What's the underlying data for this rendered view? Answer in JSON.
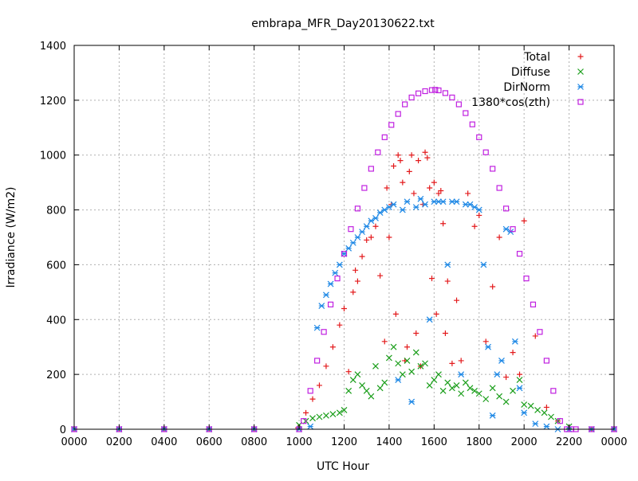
{
  "chart_data": {
    "type": "scatter",
    "title": "embrapa_MFR_Day20130622.txt",
    "xlabel": "UTC Hour",
    "ylabel": "Irradiance (W/m2)",
    "xlim": [
      0,
      24
    ],
    "ylim": [
      0,
      1400
    ],
    "grid": true,
    "legend_position": "top-right",
    "x_tick_labels": [
      "0000",
      "0200",
      "0400",
      "0600",
      "0800",
      "1000",
      "1200",
      "1400",
      "1600",
      "1800",
      "2000",
      "2200",
      "0000"
    ],
    "y_ticks": [
      0,
      200,
      400,
      600,
      800,
      1000,
      1200,
      1400
    ],
    "series": [
      {
        "name": "Total",
        "marker": "+",
        "color": "#e31a1c",
        "x": [
          0,
          2,
          4,
          6,
          8,
          9.95,
          10.3,
          10.6,
          10.9,
          11.2,
          11.5,
          11.8,
          12.0,
          12.2,
          12.4,
          12.5,
          12.6,
          12.8,
          13.0,
          13.2,
          13.4,
          13.6,
          13.8,
          13.9,
          14.0,
          14.1,
          14.2,
          14.3,
          14.4,
          14.5,
          14.6,
          14.7,
          14.8,
          14.9,
          15.0,
          15.1,
          15.2,
          15.3,
          15.4,
          15.5,
          15.6,
          15.7,
          15.8,
          15.9,
          16.0,
          16.1,
          16.2,
          16.3,
          16.4,
          16.5,
          16.6,
          16.8,
          17.0,
          17.2,
          17.5,
          17.8,
          18.0,
          18.3,
          18.6,
          18.9,
          19.2,
          19.5,
          19.8,
          20.0,
          20.5,
          21.0,
          21.5,
          22.0,
          23.0,
          24.0
        ],
        "y": [
          0,
          0,
          0,
          0,
          0,
          5,
          60,
          110,
          160,
          230,
          300,
          380,
          440,
          210,
          500,
          580,
          540,
          630,
          690,
          700,
          740,
          560,
          320,
          880,
          700,
          820,
          960,
          420,
          1000,
          980,
          900,
          250,
          300,
          940,
          1000,
          860,
          350,
          980,
          230,
          820,
          1010,
          990,
          880,
          550,
          900,
          420,
          860,
          870,
          750,
          350,
          540,
          240,
          470,
          250,
          860,
          740,
          780,
          320,
          520,
          700,
          190,
          280,
          200,
          760,
          340,
          80,
          30,
          0,
          0,
          0
        ]
      },
      {
        "name": "Diffuse",
        "marker": "×",
        "color": "#1a9e1a",
        "x": [
          0,
          2,
          4,
          6,
          8,
          10.0,
          10.3,
          10.6,
          10.9,
          11.2,
          11.5,
          11.8,
          12.0,
          12.2,
          12.4,
          12.6,
          12.8,
          13.0,
          13.2,
          13.4,
          13.6,
          13.8,
          14.0,
          14.2,
          14.4,
          14.6,
          14.8,
          15.0,
          15.2,
          15.4,
          15.6,
          15.8,
          16.0,
          16.2,
          16.4,
          16.6,
          16.8,
          17.0,
          17.2,
          17.4,
          17.6,
          17.8,
          18.0,
          18.3,
          18.6,
          18.9,
          19.2,
          19.5,
          19.8,
          20.0,
          20.3,
          20.6,
          20.9,
          21.2,
          21.5,
          22.0,
          23.0,
          24.0
        ],
        "y": [
          0,
          0,
          0,
          0,
          0,
          15,
          30,
          40,
          45,
          50,
          55,
          60,
          70,
          140,
          180,
          200,
          160,
          140,
          120,
          230,
          150,
          170,
          260,
          300,
          240,
          200,
          250,
          210,
          280,
          230,
          240,
          160,
          180,
          200,
          140,
          170,
          150,
          160,
          130,
          170,
          150,
          140,
          130,
          110,
          150,
          120,
          100,
          140,
          180,
          90,
          85,
          70,
          60,
          45,
          30,
          10,
          0,
          0
        ]
      },
      {
        "name": "DirNorm",
        "marker": "*",
        "color": "#1e88e5",
        "x": [
          0,
          2,
          4,
          6,
          8,
          10.0,
          10.5,
          10.8,
          11.0,
          11.2,
          11.4,
          11.6,
          11.8,
          12.0,
          12.2,
          12.4,
          12.6,
          12.8,
          13.0,
          13.2,
          13.4,
          13.6,
          13.8,
          14.0,
          14.2,
          14.4,
          14.6,
          14.8,
          15.0,
          15.2,
          15.4,
          15.6,
          15.8,
          16.0,
          16.2,
          16.4,
          16.6,
          16.8,
          17.0,
          17.2,
          17.4,
          17.6,
          17.8,
          18.0,
          18.2,
          18.4,
          18.6,
          18.8,
          19.0,
          19.2,
          19.4,
          19.6,
          19.8,
          20.0,
          20.5,
          21.0,
          21.5,
          22.0,
          23.0,
          24.0
        ],
        "y": [
          0,
          0,
          0,
          0,
          0,
          0,
          10,
          370,
          450,
          490,
          530,
          570,
          600,
          640,
          660,
          680,
          700,
          720,
          740,
          760,
          770,
          790,
          800,
          810,
          820,
          180,
          800,
          830,
          100,
          810,
          840,
          820,
          400,
          830,
          830,
          830,
          600,
          830,
          830,
          200,
          820,
          820,
          810,
          800,
          600,
          300,
          50,
          200,
          250,
          730,
          720,
          320,
          150,
          60,
          20,
          10,
          0,
          0,
          0,
          0
        ]
      },
      {
        "name": "1380*cos(zth)",
        "marker": "□",
        "color": "#c020e0",
        "x": [
          0,
          2,
          4,
          6,
          8,
          10.0,
          10.2,
          10.5,
          10.8,
          11.1,
          11.4,
          11.7,
          12.0,
          12.3,
          12.6,
          12.9,
          13.2,
          13.5,
          13.8,
          14.1,
          14.4,
          14.7,
          15.0,
          15.3,
          15.6,
          15.9,
          16.05,
          16.2,
          16.5,
          16.8,
          17.1,
          17.4,
          17.7,
          18.0,
          18.3,
          18.6,
          18.9,
          19.2,
          19.5,
          19.8,
          20.1,
          20.4,
          20.7,
          21.0,
          21.3,
          21.6,
          21.9,
          22.1,
          22.3,
          23.0,
          24.0
        ],
        "y": [
          0,
          0,
          0,
          0,
          0,
          0,
          30,
          140,
          250,
          355,
          455,
          550,
          640,
          730,
          805,
          880,
          950,
          1010,
          1065,
          1110,
          1150,
          1185,
          1210,
          1225,
          1233,
          1237,
          1238,
          1236,
          1226,
          1210,
          1185,
          1153,
          1112,
          1065,
          1010,
          950,
          880,
          805,
          730,
          640,
          550,
          455,
          355,
          250,
          140,
          30,
          0,
          0,
          0,
          0,
          0
        ]
      }
    ]
  }
}
